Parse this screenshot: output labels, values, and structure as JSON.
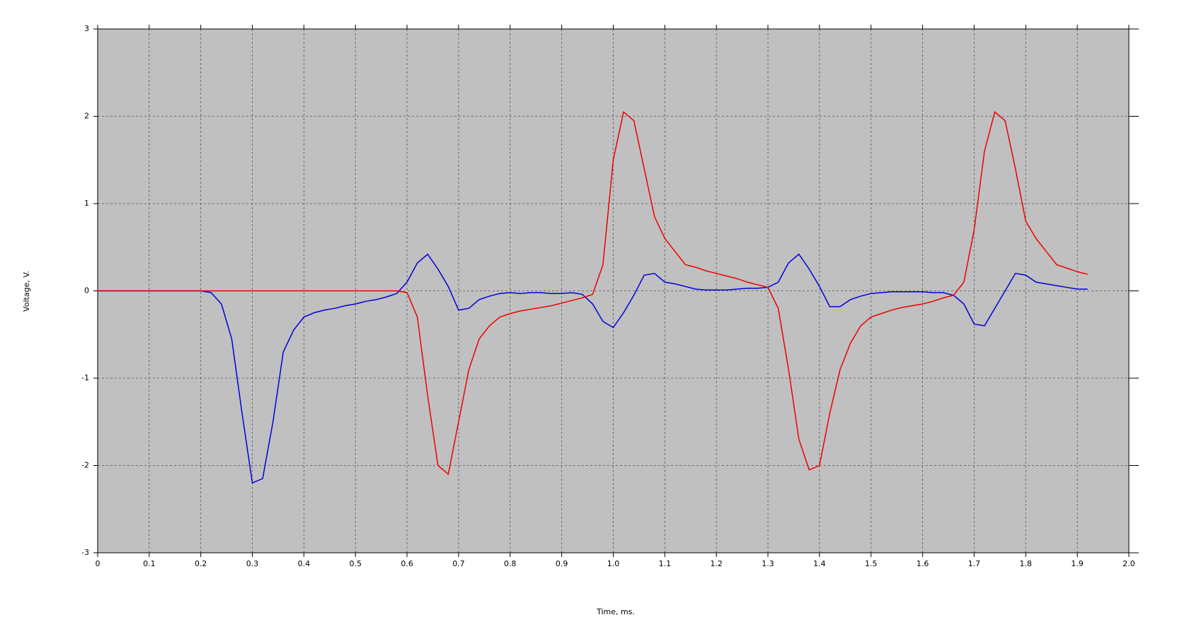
{
  "chart_data": {
    "type": "line",
    "xlabel": "Time, ms.",
    "ylabel": "Voltage, V.",
    "x": [
      0,
      0.02,
      0.04,
      0.06,
      0.08,
      0.1,
      0.12,
      0.14,
      0.16,
      0.18,
      0.2,
      0.22,
      0.24,
      0.26,
      0.28,
      0.3,
      0.32,
      0.34,
      0.36,
      0.38,
      0.4,
      0.42,
      0.44,
      0.46,
      0.48,
      0.5,
      0.52,
      0.54,
      0.56,
      0.58,
      0.6,
      0.62,
      0.64,
      0.66,
      0.68,
      0.7,
      0.72,
      0.74,
      0.76,
      0.78,
      0.8,
      0.82,
      0.84,
      0.86,
      0.88,
      0.9,
      0.92,
      0.94,
      0.96,
      0.98,
      1.0,
      1.02,
      1.04,
      1.06,
      1.08,
      1.1,
      1.12,
      1.14,
      1.16,
      1.18,
      1.2,
      1.22,
      1.24,
      1.26,
      1.28,
      1.3,
      1.32,
      1.34,
      1.36,
      1.38,
      1.4,
      1.42,
      1.44,
      1.46,
      1.48,
      1.5,
      1.52,
      1.54,
      1.56,
      1.58,
      1.6,
      1.62,
      1.64,
      1.66,
      1.68,
      1.7,
      1.72,
      1.74,
      1.76,
      1.78,
      1.8,
      1.82,
      1.84,
      1.86,
      1.88,
      1.9,
      1.92
    ],
    "series": [
      {
        "color": "#0000dd",
        "values": [
          0,
          0,
          0,
          0,
          0,
          0,
          0,
          0,
          0,
          0,
          0,
          -0.02,
          -0.15,
          -0.55,
          -1.4,
          -2.2,
          -2.15,
          -1.5,
          -0.7,
          -0.45,
          -0.3,
          -0.25,
          -0.22,
          -0.2,
          -0.17,
          -0.15,
          -0.12,
          -0.1,
          -0.07,
          -0.03,
          0.1,
          0.32,
          0.42,
          0.25,
          0.05,
          -0.22,
          -0.2,
          -0.1,
          -0.06,
          -0.03,
          -0.02,
          -0.03,
          -0.02,
          -0.02,
          -0.03,
          -0.03,
          -0.02,
          -0.04,
          -0.15,
          -0.35,
          -0.42,
          -0.25,
          -0.05,
          0.18,
          0.2,
          0.1,
          0.08,
          0.05,
          0.02,
          0.01,
          0.01,
          0.01,
          0.02,
          0.03,
          0.03,
          0.04,
          0.1,
          0.32,
          0.42,
          0.25,
          0.05,
          -0.18,
          -0.18,
          -0.1,
          -0.06,
          -0.03,
          -0.02,
          -0.01,
          -0.01,
          -0.01,
          -0.01,
          -0.02,
          -0.02,
          -0.05,
          -0.15,
          -0.38,
          -0.4,
          -0.2,
          0,
          0.2,
          0.18,
          0.1,
          0.08,
          0.06,
          0.04,
          0.02,
          0.02
        ]
      },
      {
        "color": "#ee0000",
        "values": [
          0,
          0,
          0,
          0,
          0,
          0,
          0,
          0,
          0,
          0,
          0,
          0,
          0,
          0,
          0,
          0,
          0,
          0,
          0,
          0,
          0,
          0,
          0,
          0,
          0,
          0,
          0,
          0,
          0,
          0,
          -0.02,
          -0.3,
          -1.2,
          -2.0,
          -2.1,
          -1.5,
          -0.9,
          -0.55,
          -0.4,
          -0.3,
          -0.26,
          -0.23,
          -0.21,
          -0.19,
          -0.17,
          -0.14,
          -0.11,
          -0.08,
          -0.04,
          0.3,
          1.5,
          2.05,
          1.95,
          1.4,
          0.85,
          0.6,
          0.45,
          0.3,
          0.27,
          0.23,
          0.2,
          0.17,
          0.14,
          0.1,
          0.07,
          0.04,
          -0.2,
          -0.9,
          -1.7,
          -2.05,
          -2.0,
          -1.4,
          -0.9,
          -0.6,
          -0.4,
          -0.3,
          -0.26,
          -0.22,
          -0.19,
          -0.17,
          -0.15,
          -0.12,
          -0.08,
          -0.05,
          0.1,
          0.7,
          1.6,
          2.05,
          1.95,
          1.4,
          0.8,
          0.6,
          0.45,
          0.3,
          0.26,
          0.22,
          0.19
        ]
      }
    ],
    "xlim": [
      0,
      2.0
    ],
    "xticks": [
      0,
      0.1,
      0.2,
      0.3,
      0.4,
      0.5,
      0.6,
      0.7,
      0.8,
      0.9,
      {
        "value": 1.0,
        "label": "1.0"
      },
      1.1,
      1.2,
      1.3,
      1.4,
      1.5,
      1.6,
      1.7,
      1.8,
      1.9,
      {
        "value": 2.0,
        "label": "2.0"
      }
    ],
    "ylim": [
      -3,
      3
    ],
    "yticks": [
      -3,
      -2,
      -1,
      0,
      1,
      2,
      3
    ],
    "grid": true,
    "background": "#c0c0c0"
  }
}
